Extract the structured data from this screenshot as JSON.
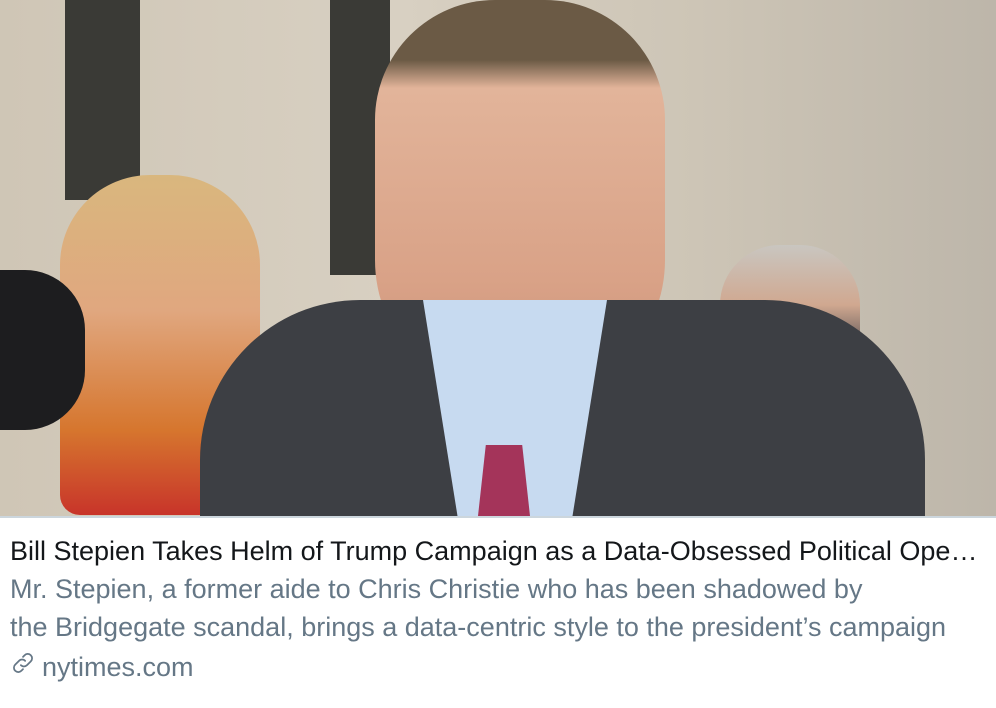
{
  "card": {
    "title": "Bill Stepien Takes Helm of Trump Campaign as a Data-Obsessed Political Operative",
    "description_lines": [
      "Mr. Stepien, a former aide to Chris Christie who has been shadowed by",
      "the Bridgegate scandal, brings a data-centric style to the president’s campaign"
    ],
    "domain": "nytimes.com",
    "domain_icon": "link-icon",
    "colors": {
      "title": "#14171a",
      "secondary": "#657786",
      "border": "#ccd6dd"
    }
  }
}
